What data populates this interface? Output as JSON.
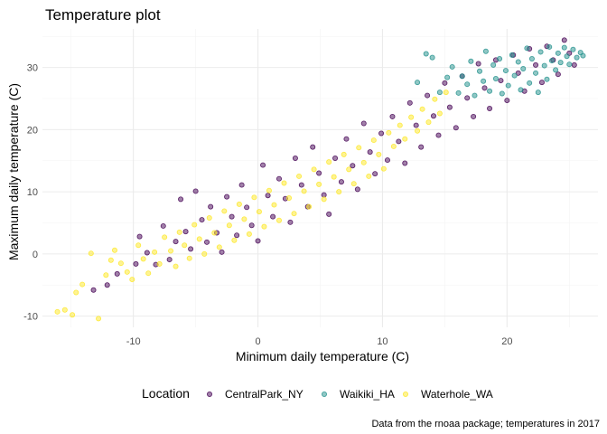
{
  "chart_data": {
    "type": "scatter",
    "title": "Temperature plot",
    "xlabel": "Minimum daily temperature (C)",
    "ylabel": "Maximum daily temperature (C)",
    "xlim": [
      -17.3,
      27.3
    ],
    "ylim": [
      -11.8,
      36.2
    ],
    "x_ticks": [
      -10,
      0,
      10,
      20
    ],
    "y_ticks": [
      -10,
      0,
      10,
      20,
      30
    ],
    "grid": true,
    "legend": {
      "title": "Location",
      "position": "bottom"
    },
    "caption": "Data from the rnoaa package; temperatures in 2017",
    "series": [
      {
        "name": "CentralPark_NY",
        "color": "#440154",
        "points": [
          [
            -13.2,
            -5.8
          ],
          [
            -12.1,
            -5.0
          ],
          [
            -11.3,
            -3.2
          ],
          [
            -9.8,
            -1.6
          ],
          [
            -9.5,
            2.8
          ],
          [
            -8.9,
            0.2
          ],
          [
            -8.2,
            -1.7
          ],
          [
            -7.6,
            4.5
          ],
          [
            -7.1,
            -0.9
          ],
          [
            -6.6,
            2.0
          ],
          [
            -6.2,
            8.8
          ],
          [
            -5.8,
            3.6
          ],
          [
            -5.4,
            0.8
          ],
          [
            -5.0,
            10.1
          ],
          [
            -4.5,
            5.5
          ],
          [
            -4.1,
            1.9
          ],
          [
            -3.8,
            7.6
          ],
          [
            -3.3,
            3.4
          ],
          [
            -2.9,
            0.3
          ],
          [
            -2.5,
            9.2
          ],
          [
            -2.1,
            6.0
          ],
          [
            -1.7,
            3.0
          ],
          [
            -1.3,
            11.1
          ],
          [
            -0.9,
            7.5
          ],
          [
            -0.5,
            4.6
          ],
          [
            0.0,
            2.1
          ],
          [
            0.4,
            14.3
          ],
          [
            0.8,
            9.4
          ],
          [
            1.2,
            6.0
          ],
          [
            1.7,
            12.1
          ],
          [
            2.2,
            8.9
          ],
          [
            2.6,
            5.1
          ],
          [
            3.0,
            15.4
          ],
          [
            3.5,
            11.1
          ],
          [
            4.0,
            7.6
          ],
          [
            4.4,
            17.2
          ],
          [
            4.9,
            13.0
          ],
          [
            5.3,
            9.5
          ],
          [
            5.7,
            6.4
          ],
          [
            6.2,
            15.4
          ],
          [
            6.7,
            11.6
          ],
          [
            7.1,
            18.5
          ],
          [
            7.6,
            14.2
          ],
          [
            8.0,
            10.4
          ],
          [
            8.5,
            21.0
          ],
          [
            9.0,
            16.4
          ],
          [
            9.4,
            12.9
          ],
          [
            9.9,
            19.4
          ],
          [
            10.4,
            15.1
          ],
          [
            10.8,
            22.1
          ],
          [
            11.3,
            18.1
          ],
          [
            11.8,
            14.6
          ],
          [
            12.2,
            24.3
          ],
          [
            12.7,
            20.7
          ],
          [
            13.1,
            17.2
          ],
          [
            13.6,
            25.5
          ],
          [
            14.1,
            22.2
          ],
          [
            14.5,
            19.1
          ],
          [
            15.0,
            27.5
          ],
          [
            15.4,
            23.6
          ],
          [
            15.9,
            20.3
          ],
          [
            16.4,
            28.6
          ],
          [
            16.8,
            25.1
          ],
          [
            17.3,
            22.1
          ],
          [
            17.7,
            30.6
          ],
          [
            18.2,
            26.7
          ],
          [
            18.6,
            23.4
          ],
          [
            19.1,
            31.2
          ],
          [
            19.5,
            27.9
          ],
          [
            20.0,
            24.7
          ],
          [
            20.5,
            32.0
          ],
          [
            20.9,
            29.1
          ],
          [
            21.4,
            26.2
          ],
          [
            21.8,
            33.0
          ],
          [
            22.3,
            30.4
          ],
          [
            22.8,
            27.6
          ],
          [
            23.2,
            33.4
          ],
          [
            23.7,
            31.2
          ],
          [
            24.1,
            28.9
          ],
          [
            24.6,
            34.4
          ],
          [
            25.0,
            32.3
          ],
          [
            25.4,
            30.4
          ]
        ]
      },
      {
        "name": "Waikiki_HA",
        "color": "#21908C",
        "points": [
          [
            12.8,
            27.6
          ],
          [
            13.5,
            32.2
          ],
          [
            14.0,
            31.6
          ],
          [
            14.6,
            26.0
          ],
          [
            15.2,
            28.4
          ],
          [
            15.6,
            30.1
          ],
          [
            16.1,
            25.9
          ],
          [
            16.4,
            28.6
          ],
          [
            16.8,
            27.3
          ],
          [
            17.1,
            31.0
          ],
          [
            17.4,
            25.5
          ],
          [
            17.8,
            29.4
          ],
          [
            18.1,
            27.8
          ],
          [
            18.3,
            32.6
          ],
          [
            18.6,
            26.2
          ],
          [
            18.9,
            30.4
          ],
          [
            19.1,
            28.2
          ],
          [
            19.4,
            31.4
          ],
          [
            19.6,
            25.8
          ],
          [
            19.9,
            29.5
          ],
          [
            20.1,
            27.1
          ],
          [
            20.4,
            32.0
          ],
          [
            20.6,
            28.7
          ],
          [
            20.9,
            30.9
          ],
          [
            21.1,
            26.4
          ],
          [
            21.3,
            29.8
          ],
          [
            21.6,
            33.1
          ],
          [
            21.8,
            27.5
          ],
          [
            22.0,
            31.4
          ],
          [
            22.3,
            29.1
          ],
          [
            22.5,
            26.0
          ],
          [
            22.7,
            32.5
          ],
          [
            23.0,
            30.3
          ],
          [
            23.2,
            28.1
          ],
          [
            23.4,
            33.3
          ],
          [
            23.6,
            31.1
          ],
          [
            23.9,
            29.6
          ],
          [
            24.1,
            32.3
          ],
          [
            24.3,
            30.8
          ],
          [
            24.6,
            33.2
          ],
          [
            24.8,
            31.8
          ],
          [
            25.0,
            30.5
          ],
          [
            25.3,
            32.9
          ],
          [
            25.6,
            31.6
          ],
          [
            25.9,
            32.4
          ],
          [
            26.1,
            31.9
          ]
        ]
      },
      {
        "name": "Waterhole_WA",
        "color": "#FDE725",
        "points": [
          [
            -16.1,
            -9.3
          ],
          [
            -15.5,
            -9.0
          ],
          [
            -14.9,
            -9.8
          ],
          [
            -14.6,
            -6.2
          ],
          [
            -14.1,
            -4.9
          ],
          [
            -13.4,
            0.1
          ],
          [
            -12.8,
            -10.4
          ],
          [
            -12.2,
            -3.4
          ],
          [
            -11.8,
            -1.0
          ],
          [
            -11.5,
            0.6
          ],
          [
            -11.0,
            -1.5
          ],
          [
            -10.5,
            -2.9
          ],
          [
            -10.1,
            -4.1
          ],
          [
            -9.6,
            1.4
          ],
          [
            -9.2,
            -0.8
          ],
          [
            -8.8,
            -3.1
          ],
          [
            -8.3,
            0.3
          ],
          [
            -7.9,
            -1.6
          ],
          [
            -7.5,
            2.7
          ],
          [
            -7.0,
            0.5
          ],
          [
            -6.6,
            -2.0
          ],
          [
            -6.3,
            3.5
          ],
          [
            -5.9,
            1.4
          ],
          [
            -5.5,
            -0.7
          ],
          [
            -5.1,
            4.7
          ],
          [
            -4.7,
            2.4
          ],
          [
            -4.3,
            0.0
          ],
          [
            -3.9,
            5.8
          ],
          [
            -3.5,
            3.4
          ],
          [
            -3.1,
            1.1
          ],
          [
            -2.7,
            6.9
          ],
          [
            -2.3,
            4.6
          ],
          [
            -1.9,
            2.2
          ],
          [
            -1.5,
            8.0
          ],
          [
            -1.1,
            5.6
          ],
          [
            -0.7,
            3.2
          ],
          [
            -0.3,
            9.1
          ],
          [
            0.1,
            6.8
          ],
          [
            0.5,
            4.4
          ],
          [
            0.9,
            10.2
          ],
          [
            1.3,
            7.9
          ],
          [
            1.7,
            5.4
          ],
          [
            2.1,
            11.4
          ],
          [
            2.5,
            9.0
          ],
          [
            2.9,
            6.5
          ],
          [
            3.3,
            12.5
          ],
          [
            3.7,
            10.1
          ],
          [
            4.1,
            7.6
          ],
          [
            4.5,
            13.6
          ],
          [
            4.9,
            11.2
          ],
          [
            5.3,
            8.8
          ],
          [
            5.7,
            14.8
          ],
          [
            6.1,
            12.4
          ],
          [
            6.5,
            10.0
          ],
          [
            6.9,
            16.0
          ],
          [
            7.3,
            13.6
          ],
          [
            7.7,
            11.3
          ],
          [
            8.1,
            17.1
          ],
          [
            8.5,
            14.7
          ],
          [
            8.9,
            12.5
          ],
          [
            9.3,
            18.3
          ],
          [
            9.7,
            16.0
          ],
          [
            10.1,
            13.7
          ],
          [
            10.5,
            19.5
          ],
          [
            10.9,
            17.3
          ],
          [
            11.4,
            20.7
          ],
          [
            11.8,
            18.5
          ],
          [
            12.3,
            22.0
          ],
          [
            12.8,
            19.8
          ],
          [
            13.2,
            23.3
          ],
          [
            13.7,
            21.2
          ],
          [
            14.2,
            24.9
          ],
          [
            14.6,
            22.6
          ],
          [
            15.1,
            26.0
          ]
        ]
      }
    ]
  }
}
